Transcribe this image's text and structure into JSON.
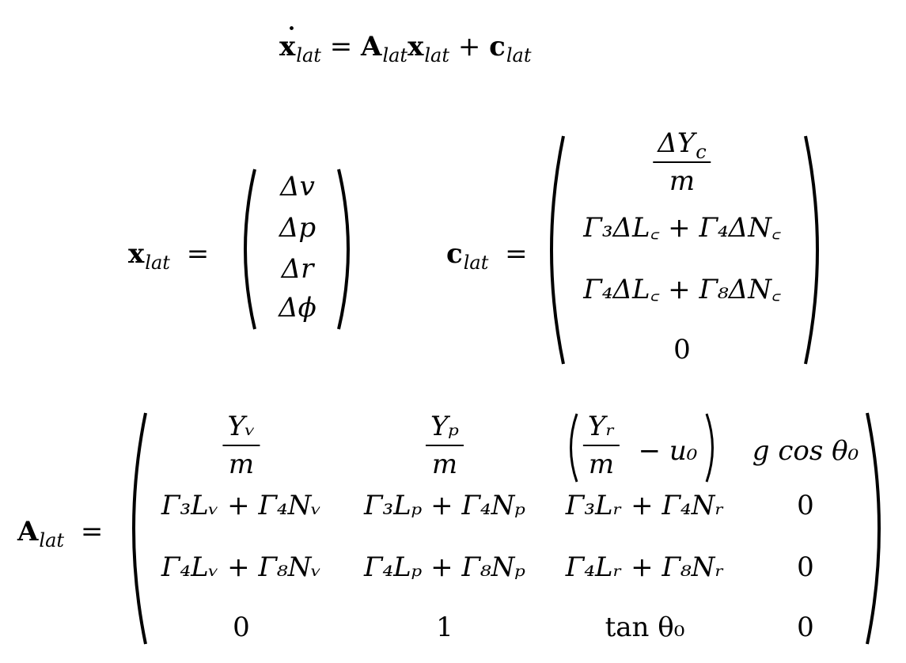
{
  "equation_main": {
    "lhs": "x",
    "lhs_sub": "lat",
    "eq": "=",
    "A": "A",
    "A_sub": "lat",
    "x": "x",
    "x_sub": "lat",
    "plus": "+",
    "c": "c",
    "c_sub": "lat"
  },
  "x_vector": {
    "label": "x",
    "label_sub": "lat",
    "eq": "=",
    "rows": [
      "Δv",
      "Δp",
      "Δr",
      "Δϕ"
    ]
  },
  "c_vector": {
    "label": "c",
    "label_sub": "lat",
    "eq": "=",
    "row0_num": "ΔY",
    "row0_num_sub": "c",
    "row0_den": "m",
    "row1": "Γ₃ΔL꜀ + Γ₄ΔN꜀",
    "row2": "Γ₄ΔL꜀ + Γ₈ΔN꜀",
    "row3": "0"
  },
  "A_matrix": {
    "label": "A",
    "label_sub": "lat",
    "eq": "=",
    "r0c0_num": "Yᵥ",
    "r0c0_den": "m",
    "r0c1_num": "Yₚ",
    "r0c1_den": "m",
    "r0c2_num": "Yᵣ",
    "r0c2_den": "m",
    "r0c2_tail": "− u₀",
    "r0c3": "g cos θ₀",
    "r1": [
      "Γ₃Lᵥ + Γ₄Nᵥ",
      "Γ₃Lₚ + Γ₄Nₚ",
      "Γ₃Lᵣ + Γ₄Nᵣ",
      "0"
    ],
    "r2": [
      "Γ₄Lᵥ + Γ₈Nᵥ",
      "Γ₄Lₚ + Γ₈Nₚ",
      "Γ₄Lᵣ + Γ₈Nᵣ",
      "0"
    ],
    "r3": [
      "0",
      "1",
      "tan θ₀",
      "0"
    ]
  }
}
